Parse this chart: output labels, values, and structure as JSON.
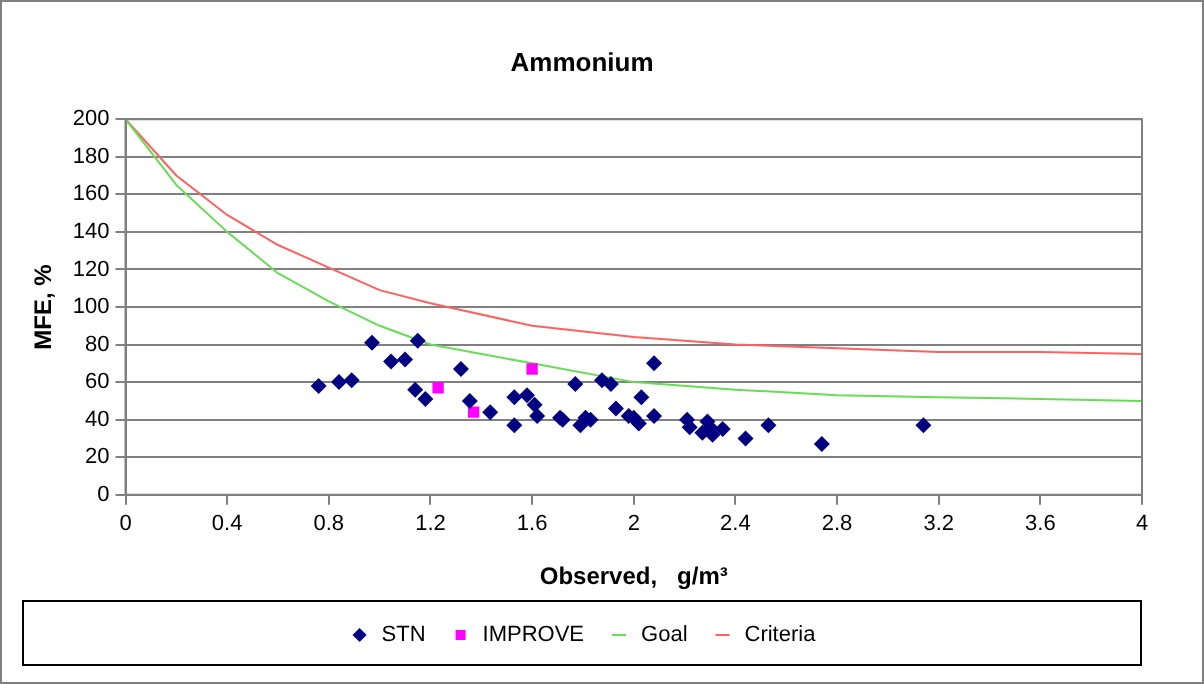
{
  "chart_data": {
    "type": "scatter",
    "title": "Ammonium",
    "xlabel": "Observed,   g/m³",
    "ylabel": "MFE, %",
    "xlim": [
      0,
      4
    ],
    "xticks": [
      0,
      0.4,
      0.8,
      1.2,
      1.6,
      2,
      2.4,
      2.8,
      3.2,
      3.6,
      4
    ],
    "ylim": [
      0,
      200
    ],
    "yticks": [
      0,
      20,
      40,
      60,
      80,
      100,
      120,
      140,
      160,
      180,
      200
    ],
    "grid": "y",
    "legend": "bottom",
    "series": [
      {
        "name": "STN",
        "type": "scatter",
        "marker": "diamond",
        "color": "#000080",
        "x": [
          0.76,
          0.84,
          0.89,
          0.97,
          1.045,
          1.1,
          1.15,
          1.14,
          1.18,
          1.32,
          1.355,
          1.435,
          1.53,
          1.53,
          1.58,
          1.61,
          1.62,
          1.71,
          1.72,
          1.77,
          1.79,
          1.81,
          1.83,
          1.875,
          1.91,
          1.93,
          1.98,
          2.0,
          2.02,
          2.03,
          2.08,
          2.08,
          2.21,
          2.22,
          2.27,
          2.29,
          2.3,
          2.31,
          2.35,
          2.44,
          2.53,
          2.74,
          3.14
        ],
        "values": [
          58,
          60,
          61,
          81,
          71,
          72,
          82,
          56,
          51,
          67,
          50,
          44,
          52,
          37,
          53,
          48,
          42,
          41,
          40,
          59,
          37,
          41,
          40,
          61,
          59,
          46,
          42,
          41,
          38,
          52,
          42,
          70,
          40,
          36,
          33,
          39,
          36,
          32,
          35,
          30,
          37,
          27,
          37
        ]
      },
      {
        "name": "IMPROVE",
        "type": "scatter",
        "marker": "square",
        "color": "#ff00ff",
        "x": [
          1.23,
          1.37,
          1.6
        ],
        "values": [
          57,
          44,
          67
        ]
      },
      {
        "name": "Goal",
        "type": "line",
        "marker": "none",
        "color": "#66dd55",
        "x": [
          0,
          0.2,
          0.4,
          0.6,
          0.8,
          1,
          1.2,
          1.6,
          2,
          2.4,
          2.8,
          3.2,
          3.6,
          4
        ],
        "values": [
          200,
          165,
          140,
          118,
          103,
          90,
          80,
          70,
          60,
          56,
          53,
          52,
          51,
          50
        ]
      },
      {
        "name": "Criteria",
        "type": "line",
        "marker": "none",
        "color": "#ff6060",
        "x": [
          0,
          0.2,
          0.4,
          0.6,
          0.8,
          1,
          1.2,
          1.6,
          2,
          2.4,
          2.8,
          3.2,
          3.6,
          4
        ],
        "values": [
          200,
          170,
          149,
          133,
          121,
          109,
          102,
          90,
          84,
          80,
          78,
          76,
          76,
          75
        ]
      }
    ]
  }
}
